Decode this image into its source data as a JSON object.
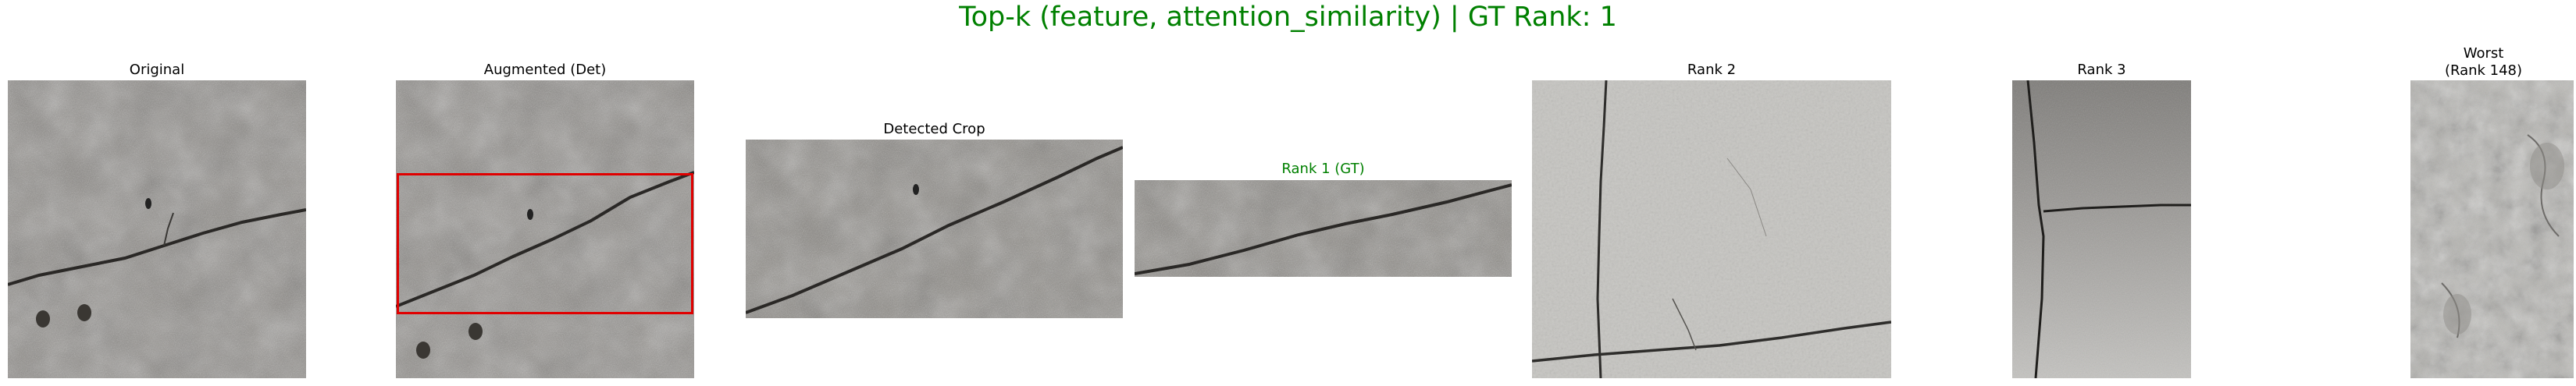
{
  "figure": {
    "title": "Top-k (feature, attention_similarity) | GT Rank: 1",
    "title_color": "#008000"
  },
  "panels": [
    {
      "id": "original",
      "caption": "Original",
      "image": "concrete-crack-photo"
    },
    {
      "id": "augmented",
      "caption": "Augmented (Det)",
      "image": "concrete-crack-photo-with-detection-box",
      "box_color": "#e00000"
    },
    {
      "id": "detected",
      "caption": "Detected Crop",
      "image": "concrete-crack-crop"
    },
    {
      "id": "rank1",
      "caption": "Rank 1 (GT)",
      "caption_color": "#008000",
      "image": "concrete-crack-retrieval"
    },
    {
      "id": "rank2",
      "caption": "Rank 2",
      "image": "light-wall-crack-retrieval"
    },
    {
      "id": "rank3",
      "caption": "Rank 3",
      "image": "stained-wall-crack-retrieval"
    },
    {
      "id": "worst",
      "caption": "Worst\n(Rank 148)",
      "image": "textured-plaster-retrieval"
    }
  ]
}
